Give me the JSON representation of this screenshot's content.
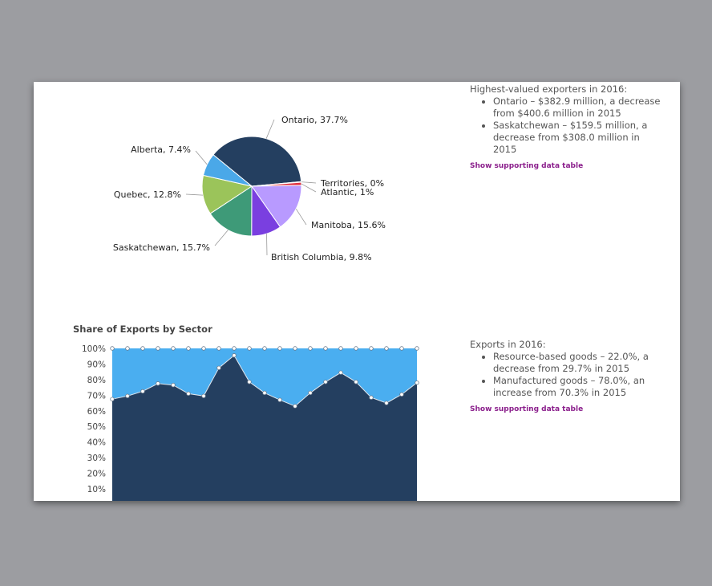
{
  "pie_info": {
    "heading": "Highest-valued exporters in 2016:",
    "bullets": [
      "Ontario – $382.9 million, a decrease from $400.6 million in 2015",
      "Saskatchewan – $159.5 million, a decrease from $308.0 million in 2015"
    ],
    "link": "Show supporting data table"
  },
  "area_info": {
    "heading": "Exports in 2016:",
    "bullets": [
      "Resource-based goods – 22.0%, a decrease from 29.7% in 2015",
      "Manufactured goods – 78.0%, an increase from 70.3% in 2015"
    ],
    "link": "Show supporting data table"
  },
  "chart_data": [
    {
      "type": "pie",
      "slices": [
        {
          "label": "Ontario, 37.7%",
          "value": 37.7,
          "color": "#243f60"
        },
        {
          "label": "Territories, 0%",
          "value": 0.2,
          "color": "#cfcfcf"
        },
        {
          "label": "Atlantic, 1%",
          "value": 1.0,
          "color": "#e0303e"
        },
        {
          "label": "Manitoba, 15.6%",
          "value": 15.6,
          "color": "#b89aff"
        },
        {
          "label": "British Columbia, 9.8%",
          "value": 9.8,
          "color": "#7a3fe0"
        },
        {
          "label": "Saskatchewan, 15.7%",
          "value": 15.7,
          "color": "#3e9a78"
        },
        {
          "label": "Quebec, 12.8%",
          "value": 12.8,
          "color": "#9bc45a"
        },
        {
          "label": "Alberta, 7.4%",
          "value": 7.4,
          "color": "#4aa8e8"
        }
      ]
    },
    {
      "type": "area",
      "title": "Share of Exports by Sector",
      "yticks": [
        "10%",
        "20%",
        "30%",
        "40%",
        "50%",
        "60%",
        "70%",
        "80%",
        "90%",
        "100%"
      ],
      "ylim": [
        0,
        100
      ],
      "series": [
        {
          "values": [
            67.5,
            69.5,
            72.5,
            77.5,
            76.5,
            71,
            69.5,
            87.5,
            95.5,
            78.5,
            71.5,
            67,
            63,
            71.5,
            78.5,
            84.5,
            78.5,
            68.5,
            65,
            70.5,
            78
          ],
          "color": "#243f60"
        },
        {
          "values": [
            100,
            100,
            100,
            100,
            100,
            100,
            100,
            100,
            100,
            100,
            100,
            100,
            100,
            100,
            100,
            100,
            100,
            100,
            100,
            100,
            100
          ],
          "color": "#4aaef0"
        }
      ]
    }
  ]
}
